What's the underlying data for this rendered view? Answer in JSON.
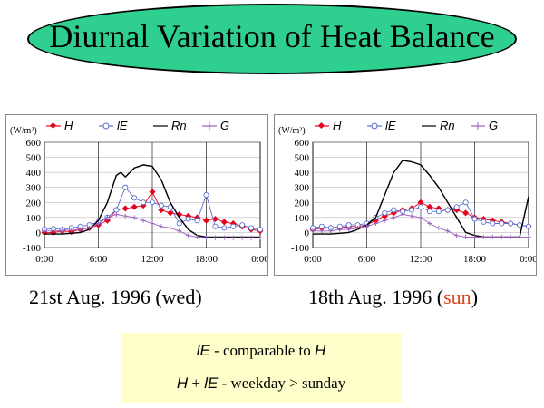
{
  "title": "Diurnal Variation of Heat Balance",
  "captions": {
    "left": "21st Aug. 1996 (wed)",
    "right_prefix": "18th Aug. 1996 (",
    "right_highlight": "sun",
    "right_suffix": ")"
  },
  "notes": {
    "line1": {
      "symbol": "lE",
      "text": "-   comparable to ",
      "symbol2": "H"
    },
    "line2": {
      "symbol": "H",
      "plus": "+",
      "symbol2": "lE",
      "text": "-   weekday > sunday"
    }
  },
  "colors": {
    "H": "#e8001c",
    "lE": "#5a6fd0",
    "Rn": "#000000",
    "G": "#9b5fc0",
    "sun": "#e0431b"
  },
  "chart_data": [
    {
      "type": "line",
      "caption": "21st Aug. 1996 (wed)",
      "unit_label": "(W/m²)",
      "xlabels": [
        "0:00",
        "6:00",
        "12:00",
        "18:00",
        "0:00"
      ],
      "ylabels": [
        "600",
        "500",
        "400",
        "300",
        "200",
        "100",
        "0",
        "-100"
      ],
      "xlim": [
        0,
        24
      ],
      "ylim": [
        -100,
        600
      ],
      "grid": true,
      "legend": "top",
      "series": [
        {
          "name": "H",
          "x": [
            0,
            1,
            2,
            3,
            4,
            5,
            6,
            7,
            8,
            9,
            10,
            11,
            12,
            13,
            14,
            15,
            16,
            17,
            18,
            19,
            20,
            21,
            22,
            23,
            24
          ],
          "values": [
            0,
            0,
            10,
            5,
            20,
            30,
            50,
            80,
            150,
            160,
            170,
            180,
            270,
            150,
            130,
            120,
            110,
            100,
            80,
            90,
            70,
            60,
            40,
            20,
            10
          ]
        },
        {
          "name": "lE",
          "x": [
            0,
            1,
            2,
            3,
            4,
            5,
            6,
            7,
            8,
            9,
            10,
            11,
            12,
            13,
            14,
            15,
            16,
            17,
            18,
            19,
            20,
            21,
            22,
            23,
            24
          ],
          "values": [
            20,
            25,
            20,
            30,
            40,
            50,
            70,
            100,
            150,
            300,
            230,
            200,
            200,
            180,
            170,
            60,
            90,
            80,
            250,
            40,
            30,
            40,
            50,
            30,
            20
          ]
        },
        {
          "name": "Rn",
          "x": [
            0,
            1,
            2,
            3,
            4,
            5,
            6,
            7,
            8,
            8.5,
            9,
            10,
            11,
            12,
            13,
            14,
            15,
            16,
            17,
            18,
            19,
            20,
            21,
            22,
            23,
            24
          ],
          "values": [
            -10,
            -10,
            -10,
            -5,
            0,
            20,
            80,
            200,
            380,
            400,
            370,
            430,
            450,
            440,
            350,
            200,
            100,
            20,
            -20,
            -30,
            -30,
            -30,
            -30,
            -30,
            -30,
            -30
          ]
        },
        {
          "name": "G",
          "x": [
            0,
            1,
            2,
            3,
            4,
            5,
            6,
            7,
            8,
            9,
            10,
            11,
            12,
            13,
            14,
            15,
            16,
            17,
            18,
            19,
            20,
            21,
            22,
            23,
            24
          ],
          "values": [
            10,
            10,
            15,
            15,
            20,
            30,
            60,
            100,
            120,
            110,
            100,
            80,
            60,
            40,
            30,
            10,
            -20,
            -30,
            -35,
            -35,
            -35,
            -35,
            -35,
            -35,
            -35
          ]
        }
      ]
    },
    {
      "type": "line",
      "caption": "18th Aug. 1996 (sun)",
      "unit_label": "(W/m²)",
      "xlabels": [
        "0:00",
        "6:00",
        "12:00",
        "18:00",
        "0:00"
      ],
      "ylabels": [
        "600",
        "500",
        "400",
        "300",
        "200",
        "100",
        "0",
        "-100"
      ],
      "xlim": [
        0,
        24
      ],
      "ylim": [
        -100,
        600
      ],
      "grid": true,
      "legend": "top",
      "series": [
        {
          "name": "H",
          "x": [
            0,
            1,
            2,
            3,
            4,
            5,
            6,
            7,
            8,
            9,
            10,
            11,
            12,
            13,
            14,
            15,
            16,
            17,
            18,
            19,
            20,
            21,
            22,
            23,
            24
          ],
          "values": [
            20,
            30,
            30,
            30,
            40,
            40,
            50,
            80,
            110,
            130,
            150,
            160,
            200,
            170,
            160,
            150,
            150,
            130,
            100,
            90,
            80,
            70,
            60,
            50,
            40
          ]
        },
        {
          "name": "lE",
          "x": [
            0,
            1,
            2,
            3,
            4,
            5,
            6,
            7,
            8,
            9,
            10,
            11,
            12,
            13,
            14,
            15,
            16,
            17,
            18,
            19,
            20,
            21,
            22,
            23,
            24
          ],
          "values": [
            30,
            40,
            30,
            40,
            50,
            50,
            60,
            100,
            130,
            150,
            140,
            150,
            170,
            140,
            140,
            150,
            170,
            200,
            90,
            70,
            60,
            60,
            60,
            50,
            40
          ]
        },
        {
          "name": "Rn",
          "x": [
            0,
            1,
            2,
            3,
            4,
            5,
            6,
            7,
            8,
            9,
            10,
            11,
            12,
            13,
            14,
            15,
            16,
            17,
            18,
            19,
            20,
            21,
            22,
            23,
            24
          ],
          "values": [
            -10,
            -10,
            -10,
            -5,
            0,
            20,
            50,
            100,
            250,
            400,
            480,
            470,
            450,
            380,
            300,
            200,
            100,
            0,
            -20,
            -30,
            -30,
            -30,
            -30,
            -30,
            240
          ]
        },
        {
          "name": "G",
          "x": [
            0,
            1,
            2,
            3,
            4,
            5,
            6,
            7,
            8,
            9,
            10,
            11,
            12,
            13,
            14,
            15,
            16,
            17,
            18,
            19,
            20,
            21,
            22,
            23,
            24
          ],
          "values": [
            10,
            10,
            10,
            20,
            20,
            30,
            40,
            60,
            80,
            100,
            120,
            110,
            100,
            60,
            30,
            10,
            -20,
            -30,
            -30,
            -30,
            -30,
            -30,
            -30,
            -30,
            -30
          ]
        }
      ]
    }
  ]
}
